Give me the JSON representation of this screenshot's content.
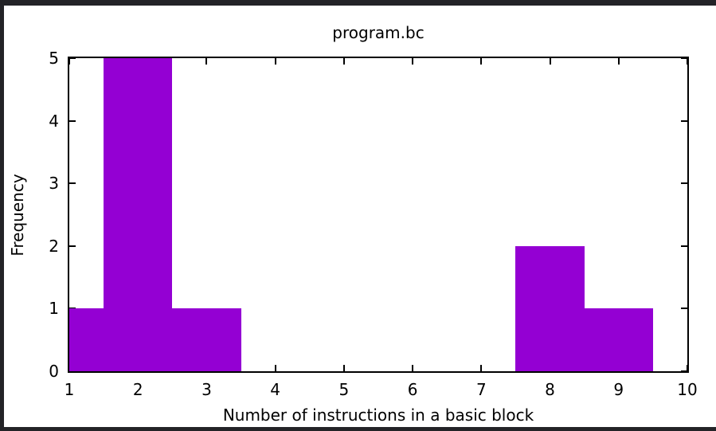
{
  "window": {
    "frame_color": "#232327",
    "background_color": "#ffffff"
  },
  "chart_data": {
    "type": "bar",
    "title": "program.bc",
    "xlabel": "Number of instructions in a basic block",
    "ylabel": "Frequency",
    "xlim": [
      1,
      10
    ],
    "ylim": [
      0,
      5
    ],
    "xticks": [
      "1",
      "2",
      "3",
      "4",
      "5",
      "6",
      "7",
      "8",
      "9",
      "10"
    ],
    "yticks": [
      "0",
      "1",
      "2",
      "3",
      "4",
      "5"
    ],
    "grid": false,
    "legend_position": "none",
    "bar_color": "#9400d3",
    "axis_color": "#000000",
    "bins": [
      {
        "x_start": 1.0,
        "x_end": 1.5,
        "frequency": 1
      },
      {
        "x_start": 1.5,
        "x_end": 2.5,
        "frequency": 5
      },
      {
        "x_start": 2.5,
        "x_end": 3.5,
        "frequency": 1
      },
      {
        "x_start": 7.5,
        "x_end": 8.5,
        "frequency": 2
      },
      {
        "x_start": 8.5,
        "x_end": 9.5,
        "frequency": 1
      }
    ]
  }
}
